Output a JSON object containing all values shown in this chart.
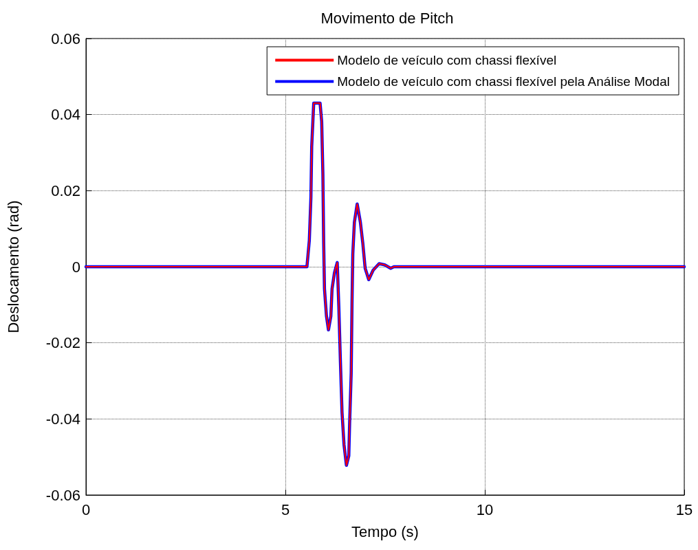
{
  "chart_data": {
    "type": "line",
    "title": "Movimento de Pitch",
    "xlabel": "Tempo (s)",
    "ylabel": "Deslocamento (rad)",
    "x": [
      0,
      5.54,
      5.6,
      5.64,
      5.66,
      5.71,
      5.87,
      5.91,
      5.94,
      5.96,
      5.98,
      6.03,
      6.08,
      6.14,
      6.17,
      6.23,
      6.3,
      6.34,
      6.38,
      6.42,
      6.47,
      6.53,
      6.59,
      6.61,
      6.65,
      6.67,
      6.69,
      6.73,
      6.8,
      6.88,
      6.94,
      7.0,
      7.09,
      7.2,
      7.35,
      7.49,
      7.64,
      7.72,
      15
    ],
    "series": [
      {
        "name": "Modelo de veículo com chassi flexível",
        "color": "#ff0000",
        "values": [
          0,
          0,
          0.0069,
          0.0183,
          0.0316,
          0.043,
          0.043,
          0.0382,
          0.0244,
          0.0063,
          -0.0058,
          -0.013,
          -0.0166,
          -0.013,
          -0.0058,
          -0.0016,
          0.0011,
          -0.0106,
          -0.0251,
          -0.0383,
          -0.0468,
          -0.0522,
          -0.0497,
          -0.0413,
          -0.028,
          -0.01,
          0.0033,
          0.0117,
          0.0165,
          0.0117,
          0.0063,
          -0.0004,
          -0.0034,
          -0.0009,
          0.0008,
          0.0005,
          -0.0004,
          0,
          0
        ]
      },
      {
        "name": "Modelo de veículo com chassi flexível pela Análise Modal",
        "color": "#0000ff",
        "values": [
          0,
          0,
          0.0069,
          0.0183,
          0.0316,
          0.043,
          0.043,
          0.0382,
          0.0244,
          0.0063,
          -0.0058,
          -0.013,
          -0.0166,
          -0.013,
          -0.0058,
          -0.0016,
          0.0011,
          -0.0106,
          -0.0251,
          -0.0383,
          -0.0468,
          -0.0522,
          -0.0497,
          -0.0413,
          -0.028,
          -0.01,
          0.0033,
          0.0117,
          0.0165,
          0.0117,
          0.0063,
          -0.0004,
          -0.0034,
          -0.0009,
          0.0008,
          0.0005,
          -0.0004,
          0,
          0
        ]
      }
    ],
    "xlim": [
      0,
      15
    ],
    "xticks": [
      0,
      5,
      10,
      15
    ],
    "ylim": [
      -0.06,
      0.06
    ],
    "yticks": [
      -0.06,
      -0.04,
      -0.02,
      0,
      0.02,
      0.04,
      0.06
    ],
    "grid": true,
    "legend": "top right",
    "marker": "none",
    "line_style": "solid"
  }
}
